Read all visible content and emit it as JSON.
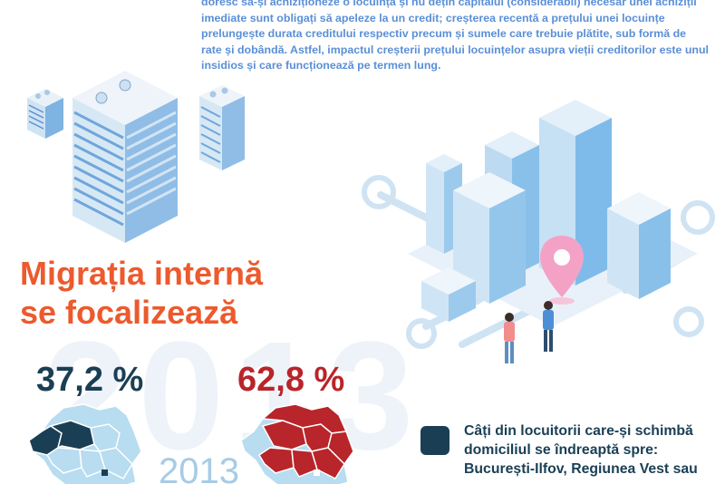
{
  "intro_text": "doresc să-și achiziționeze o locuință și nu dețin capitalul (considerabil) necesar unei achiziții imediate sunt obligați să apeleze la un credit; creșterea recentă a prețului unei locuințe prelungește durata creditului respectiv precum și sumele care trebuie plătite, sub formă de rate și dobândă. Astfel, impactul creșterii prețului locuințelor asupra vieții creditorilor este unul insidios și care funcționează pe termen lung.",
  "headline": {
    "line1": "Migrația internă",
    "line2": "se focalizează"
  },
  "background_year": "2013",
  "stats": {
    "left_value": "37,2 %",
    "right_value": "62,8 %"
  },
  "year_label": "2013",
  "legend_text": "Câți din locuitorii care-și schimbă domiciliul se îndreaptă spre: București-Ilfov, Regiunea Vest sau",
  "colors": {
    "intro": "#5b8fd6",
    "headline": "#ec5a2d",
    "stat_left": "#1a3f54",
    "stat_right": "#b8252a",
    "map_light": "#b8dcf0",
    "map_dark": "#1a3f54",
    "map_red": "#b8252a",
    "year_label": "#a6cbe6"
  }
}
